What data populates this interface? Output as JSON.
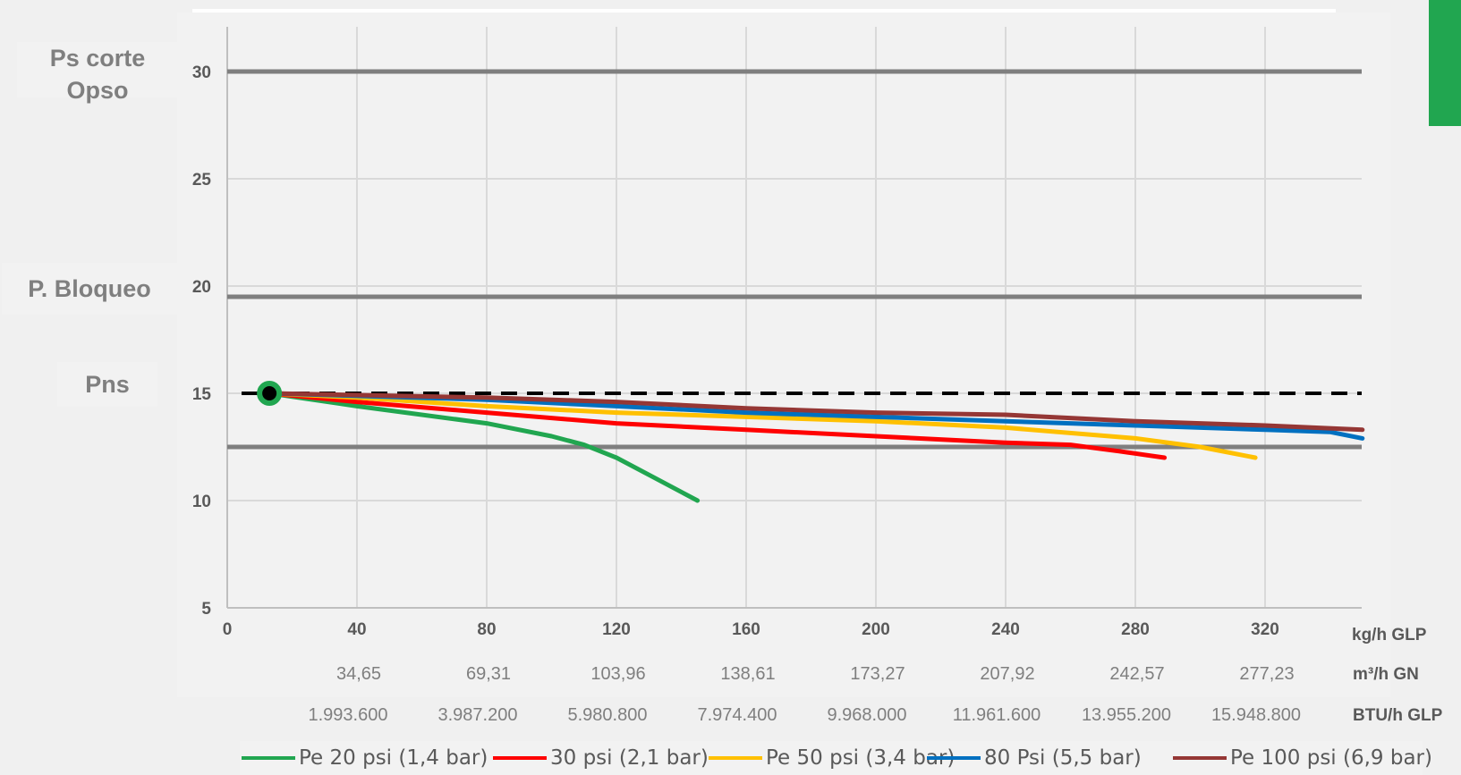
{
  "chart_data": {
    "type": "line",
    "y_axis": {
      "min": 5,
      "max": 30,
      "ticks": [
        5,
        10,
        15,
        20,
        25,
        30
      ]
    },
    "x_axis": {
      "min": 0,
      "max": 350,
      "ticks": [
        0,
        40,
        80,
        120,
        160,
        200,
        240,
        280,
        320
      ],
      "unit_label": "kg/h GLP"
    },
    "secondary_axes": [
      {
        "unit_label": "m³/h GN",
        "labels": [
          "34,65",
          "69,31",
          "103,96",
          "138,61",
          "173,27",
          "207,92",
          "242,57",
          "277,23"
        ]
      },
      {
        "unit_label": "BTU/h GLP",
        "labels": [
          "1.993.600",
          "3.987.200",
          "5.980.800",
          "7.974.400",
          "9.968.000",
          "11.961.600",
          "13.955.200",
          "15.948.800"
        ]
      }
    ],
    "reference_lines": [
      {
        "label": "Ps corte Opso",
        "label_lines": [
          "Ps corte",
          "Opso"
        ],
        "y": 30,
        "style": "solid",
        "color": "#7f7f7f"
      },
      {
        "label": "P. Bloqueo",
        "y": 19.5,
        "style": "solid",
        "color": "#7f7f7f"
      },
      {
        "label": "Pns",
        "y": 15,
        "style": "dashed",
        "color": "#000000"
      },
      {
        "label": "",
        "y": 12.5,
        "style": "solid",
        "color": "#7f7f7f"
      }
    ],
    "marker": {
      "x": 13,
      "y": 15,
      "color": "#21a650"
    },
    "series": [
      {
        "name": "Pe 20 psi (1,4 bar)",
        "color": "#21a650",
        "points": [
          [
            13,
            15
          ],
          [
            40,
            14.4
          ],
          [
            80,
            13.6
          ],
          [
            100,
            13.0
          ],
          [
            110,
            12.6
          ],
          [
            120,
            12.0
          ],
          [
            130,
            11.2
          ],
          [
            145,
            10.0
          ]
        ]
      },
      {
        "name": "30 psi (2,1 bar)",
        "color": "#ff0000",
        "points": [
          [
            13,
            15
          ],
          [
            40,
            14.6
          ],
          [
            80,
            14.1
          ],
          [
            120,
            13.6
          ],
          [
            160,
            13.3
          ],
          [
            200,
            13.0
          ],
          [
            240,
            12.7
          ],
          [
            260,
            12.6
          ],
          [
            275,
            12.3
          ],
          [
            289,
            12.0
          ]
        ]
      },
      {
        "name": "Pe 50 psi (3,4 bar)",
        "color": "#ffc000",
        "points": [
          [
            13,
            15
          ],
          [
            40,
            14.8
          ],
          [
            80,
            14.4
          ],
          [
            120,
            14.1
          ],
          [
            160,
            13.9
          ],
          [
            200,
            13.7
          ],
          [
            240,
            13.4
          ],
          [
            280,
            12.9
          ],
          [
            300,
            12.5
          ],
          [
            317,
            12.0
          ]
        ]
      },
      {
        "name": "80 Psi (5,5 bar)",
        "color": "#0070c0",
        "points": [
          [
            13,
            15
          ],
          [
            80,
            14.7
          ],
          [
            120,
            14.4
          ],
          [
            160,
            14.1
          ],
          [
            200,
            13.9
          ],
          [
            240,
            13.7
          ],
          [
            280,
            13.5
          ],
          [
            320,
            13.3
          ],
          [
            340,
            13.2
          ],
          [
            350,
            12.9
          ]
        ]
      },
      {
        "name": "Pe 100 psi (6,9 bar)",
        "color": "#953735",
        "points": [
          [
            13,
            15
          ],
          [
            80,
            14.8
          ],
          [
            120,
            14.6
          ],
          [
            160,
            14.3
          ],
          [
            200,
            14.1
          ],
          [
            240,
            14.0
          ],
          [
            280,
            13.7
          ],
          [
            320,
            13.5
          ],
          [
            350,
            13.3
          ]
        ]
      }
    ],
    "grid": true
  }
}
